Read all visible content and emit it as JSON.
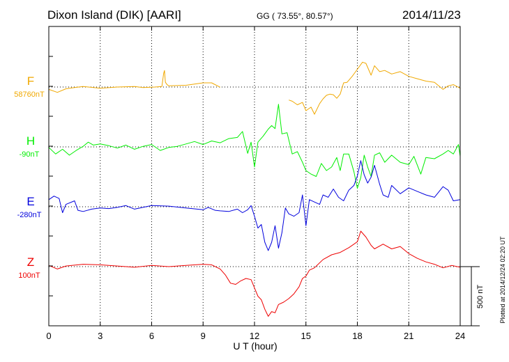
{
  "header": {
    "station": "Dixon Island (DIK)  [AARI]",
    "coords": "GG ( 73.55°,  80.57°)",
    "date": "2014/11/23"
  },
  "footer": {
    "xlabel": "U T (hour)",
    "plotted": "Plotted at 2014/12/24 02:20 UT",
    "scale_label": "500 nT"
  },
  "colors": {
    "F": "#f0a800",
    "H": "#00ee00",
    "E": "#0000dd",
    "Z": "#ee0000",
    "axis": "#000000"
  },
  "chart_data": {
    "type": "line",
    "x_unit": "hour",
    "xlim": [
      0,
      24
    ],
    "x_ticks": [
      0,
      3,
      6,
      9,
      12,
      15,
      18,
      21,
      24
    ],
    "scale_bar_nT": 500,
    "series": [
      {
        "name": "F",
        "baseline_label": "58760nT",
        "points": [
          [
            0,
            -20
          ],
          [
            0.5,
            -45
          ],
          [
            1,
            -15
          ],
          [
            1.5,
            -5
          ],
          [
            2,
            5
          ],
          [
            3,
            -10
          ],
          [
            4,
            0
          ],
          [
            5,
            5
          ],
          [
            5.5,
            -5
          ],
          [
            6.2,
            0
          ],
          [
            6.6,
            5
          ],
          [
            6.7,
            115
          ],
          [
            6.75,
            140
          ],
          [
            6.8,
            40
          ],
          [
            6.9,
            20
          ],
          [
            7,
            10
          ],
          [
            8,
            15
          ],
          [
            9,
            35
          ],
          [
            9.5,
            35
          ],
          [
            10,
            -2
          ],
          null,
          [
            14,
            -110
          ],
          [
            14.2,
            -120
          ],
          [
            14.5,
            -150
          ],
          [
            14.8,
            -130
          ],
          [
            15,
            -200
          ],
          [
            15.3,
            -170
          ],
          [
            15.5,
            -230
          ],
          [
            15.8,
            -140
          ],
          [
            16,
            -100
          ],
          [
            16.2,
            -70
          ],
          [
            16.4,
            -60
          ],
          [
            16.6,
            -65
          ],
          [
            16.8,
            -95
          ],
          [
            17,
            -60
          ],
          [
            17.2,
            35
          ],
          [
            17.4,
            40
          ],
          [
            17.7,
            90
          ],
          [
            18,
            150
          ],
          [
            18.3,
            210
          ],
          [
            18.5,
            200
          ],
          [
            18.8,
            100
          ],
          [
            19,
            180
          ],
          [
            19.3,
            130
          ],
          [
            19.6,
            140
          ],
          [
            20,
            110
          ],
          [
            20.5,
            130
          ],
          [
            21,
            90
          ],
          [
            21.5,
            70
          ],
          [
            22,
            50
          ],
          [
            22.5,
            40
          ],
          [
            23,
            -20
          ],
          [
            23.3,
            10
          ],
          [
            23.6,
            20
          ],
          [
            24,
            -10
          ]
        ]
      },
      {
        "name": "H",
        "baseline_label": "-90nT",
        "points": [
          [
            0,
            -5
          ],
          [
            0.4,
            -60
          ],
          [
            0.8,
            -20
          ],
          [
            1.2,
            -70
          ],
          [
            1.6,
            -30
          ],
          [
            2,
            5
          ],
          [
            2.3,
            40
          ],
          [
            2.6,
            15
          ],
          [
            3,
            25
          ],
          [
            3.5,
            10
          ],
          [
            4,
            -10
          ],
          [
            4.5,
            15
          ],
          [
            5,
            -20
          ],
          [
            5.5,
            5
          ],
          [
            6,
            20
          ],
          [
            6.5,
            -30
          ],
          [
            7,
            -5
          ],
          [
            7.5,
            5
          ],
          [
            8,
            25
          ],
          [
            8.5,
            45
          ],
          [
            9,
            20
          ],
          [
            9.5,
            50
          ],
          [
            10,
            35
          ],
          [
            10.5,
            70
          ],
          [
            11,
            80
          ],
          [
            11.3,
            130
          ],
          [
            11.6,
            -55
          ],
          [
            11.8,
            40
          ],
          [
            12,
            -170
          ],
          [
            12.2,
            40
          ],
          [
            12.5,
            90
          ],
          [
            12.8,
            150
          ],
          [
            13,
            180
          ],
          [
            13.2,
            155
          ],
          [
            13.4,
            360
          ],
          [
            13.6,
            110
          ],
          [
            13.9,
            120
          ],
          [
            14.2,
            -60
          ],
          [
            14.5,
            -40
          ],
          [
            14.8,
            -130
          ],
          [
            15,
            -200
          ],
          [
            15.3,
            -230
          ],
          [
            15.6,
            -250
          ],
          [
            15.9,
            -140
          ],
          [
            16.2,
            -200
          ],
          [
            16.5,
            -170
          ],
          [
            16.8,
            -90
          ],
          [
            17,
            -200
          ],
          [
            17.2,
            -60
          ],
          [
            17.5,
            -60
          ],
          [
            17.8,
            -210
          ],
          [
            18,
            -350
          ],
          [
            18.2,
            -260
          ],
          [
            18.4,
            -70
          ],
          [
            18.6,
            -170
          ],
          [
            18.8,
            -250
          ],
          [
            19,
            -70
          ],
          [
            19.3,
            -50
          ],
          [
            19.6,
            -130
          ],
          [
            20,
            -70
          ],
          [
            20.5,
            -130
          ],
          [
            21,
            -150
          ],
          [
            21.3,
            -80
          ],
          [
            21.7,
            -230
          ],
          [
            22,
            -90
          ],
          [
            22.5,
            -100
          ],
          [
            23,
            -60
          ],
          [
            23.3,
            -30
          ],
          [
            23.6,
            -60
          ],
          [
            23.9,
            20
          ],
          [
            24,
            -80
          ]
        ]
      },
      {
        "name": "E",
        "baseline_label": "-280nT",
        "points": [
          [
            0,
            60
          ],
          [
            0.3,
            90
          ],
          [
            0.6,
            70
          ],
          [
            0.8,
            -50
          ],
          [
            1,
            20
          ],
          [
            1.5,
            50
          ],
          [
            1.7,
            -30
          ],
          [
            2,
            -40
          ],
          [
            2.5,
            -20
          ],
          [
            3,
            -10
          ],
          [
            3.5,
            -15
          ],
          [
            4,
            -5
          ],
          [
            4.5,
            10
          ],
          [
            5,
            -20
          ],
          [
            6,
            10
          ],
          [
            7,
            5
          ],
          [
            8,
            -10
          ],
          [
            9,
            -25
          ],
          [
            9.3,
            -5
          ],
          [
            9.7,
            -30
          ],
          [
            10,
            -35
          ],
          [
            10.5,
            -40
          ],
          [
            11,
            -20
          ],
          [
            11.3,
            -50
          ],
          [
            11.6,
            -25
          ],
          [
            11.8,
            10
          ],
          [
            12,
            -80
          ],
          [
            12.2,
            -180
          ],
          [
            12.4,
            -150
          ],
          [
            12.6,
            -300
          ],
          [
            12.8,
            -370
          ],
          [
            13,
            -300
          ],
          [
            13.2,
            -160
          ],
          [
            13.4,
            -350
          ],
          [
            13.6,
            -220
          ],
          [
            13.8,
            -10
          ],
          [
            14,
            -60
          ],
          [
            14.3,
            -80
          ],
          [
            14.6,
            -50
          ],
          [
            14.8,
            100
          ],
          [
            15,
            -160
          ],
          [
            15.2,
            60
          ],
          [
            15.5,
            40
          ],
          [
            15.8,
            20
          ],
          [
            16,
            100
          ],
          [
            16.3,
            80
          ],
          [
            16.6,
            150
          ],
          [
            16.9,
            80
          ],
          [
            17.2,
            50
          ],
          [
            17.5,
            140
          ],
          [
            17.8,
            180
          ],
          [
            18,
            260
          ],
          [
            18.2,
            390
          ],
          [
            18.4,
            270
          ],
          [
            18.6,
            200
          ],
          [
            18.8,
            250
          ],
          [
            19,
            350
          ],
          [
            19.3,
            190
          ],
          [
            19.5,
            100
          ],
          [
            19.8,
            80
          ],
          [
            20,
            180
          ],
          [
            20.5,
            110
          ],
          [
            21,
            160
          ],
          [
            21.5,
            130
          ],
          [
            22,
            100
          ],
          [
            22.5,
            80
          ],
          [
            23,
            170
          ],
          [
            23.3,
            140
          ],
          [
            23.6,
            50
          ],
          [
            24,
            60
          ]
        ]
      },
      {
        "name": "Z",
        "baseline_label": "100nT",
        "points": [
          [
            0,
            10
          ],
          [
            0.5,
            -20
          ],
          [
            1,
            5
          ],
          [
            2,
            20
          ],
          [
            3,
            15
          ],
          [
            4,
            5
          ],
          [
            5,
            -5
          ],
          [
            6,
            10
          ],
          [
            7,
            0
          ],
          [
            8,
            10
          ],
          [
            9,
            20
          ],
          [
            9.5,
            15
          ],
          [
            10,
            -20
          ],
          [
            10.3,
            -70
          ],
          [
            10.6,
            -140
          ],
          [
            10.9,
            -150
          ],
          [
            11.2,
            -120
          ],
          [
            11.5,
            -100
          ],
          [
            11.8,
            -110
          ],
          [
            12,
            -180
          ],
          [
            12.2,
            -250
          ],
          [
            12.4,
            -280
          ],
          [
            12.6,
            -360
          ],
          [
            12.8,
            -420
          ],
          [
            13,
            -380
          ],
          [
            13.2,
            -390
          ],
          [
            13.4,
            -320
          ],
          [
            13.7,
            -300
          ],
          [
            14,
            -270
          ],
          [
            14.3,
            -230
          ],
          [
            14.6,
            -170
          ],
          [
            14.8,
            -100
          ],
          [
            15,
            -80
          ],
          [
            15.2,
            -30
          ],
          [
            15.5,
            -10
          ],
          [
            16,
            60
          ],
          [
            16.5,
            100
          ],
          [
            17,
            120
          ],
          [
            17.5,
            160
          ],
          [
            18,
            210
          ],
          [
            18.2,
            300
          ],
          [
            18.5,
            250
          ],
          [
            18.8,
            180
          ],
          [
            19,
            150
          ],
          [
            19.5,
            190
          ],
          [
            20,
            150
          ],
          [
            20.5,
            170
          ],
          [
            21,
            110
          ],
          [
            21.5,
            70
          ],
          [
            22,
            40
          ],
          [
            22.5,
            20
          ],
          [
            23,
            -10
          ],
          [
            23.5,
            10
          ],
          [
            24,
            -5
          ]
        ]
      }
    ]
  }
}
